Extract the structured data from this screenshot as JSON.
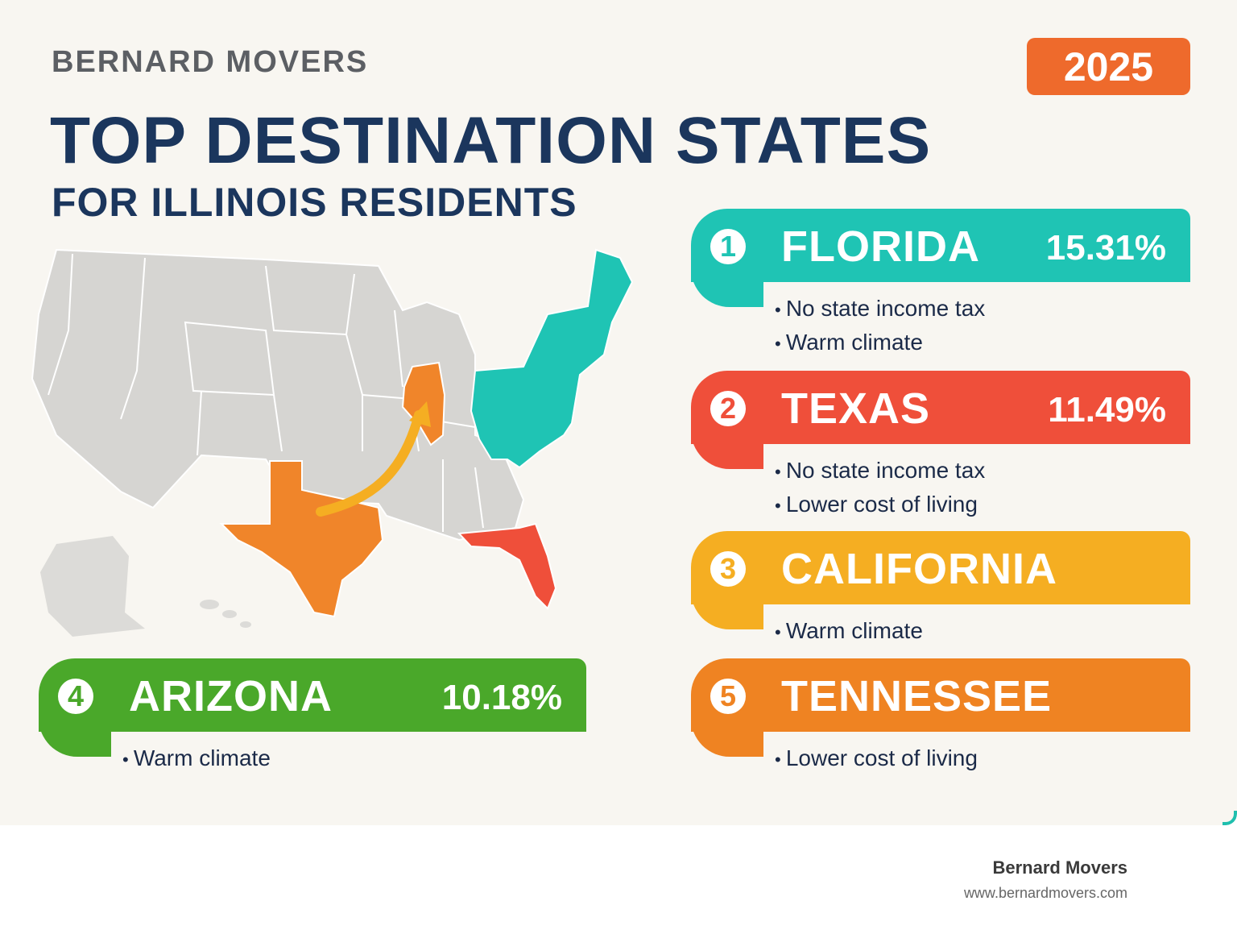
{
  "brand": "BERNARD MOVERS",
  "year": "2025",
  "title": "TOP DESTINATION STATES",
  "subtitle": "FOR ILLINOIS RESIDENTS",
  "colors": {
    "background": "#f8f6f1",
    "title": "#1b365d",
    "florida": "#1fc4b4",
    "texas": "#ef4f3a",
    "california": "#f5ae22",
    "tennessee": "#ef8322",
    "arizona": "#4aa82a",
    "year_badge": "#ee6a2c",
    "map_gray": "#d6d5d2"
  },
  "destinations": [
    {
      "rank": "1",
      "state": "FLORIDA",
      "percent": "15.31%",
      "reasons": [
        "No state income tax",
        "Warm climate"
      ]
    },
    {
      "rank": "2",
      "state": "TEXAS",
      "percent": "11.49%",
      "reasons": [
        "No state income tax",
        "Lower cost of living"
      ]
    },
    {
      "rank": "3",
      "state": "CALIFORNIA",
      "percent": "",
      "reasons": [
        "Warm climate"
      ]
    },
    {
      "rank": "4",
      "state": "ARIZONA",
      "percent": "10.18%",
      "reasons": [
        "Warm climate"
      ]
    },
    {
      "rank": "5",
      "state": "TENNESSEE",
      "percent": "",
      "reasons": [
        "Lower cost of living"
      ]
    }
  ],
  "footer": {
    "company": "Bernard Movers",
    "url": "www.bernardmovers.com"
  }
}
